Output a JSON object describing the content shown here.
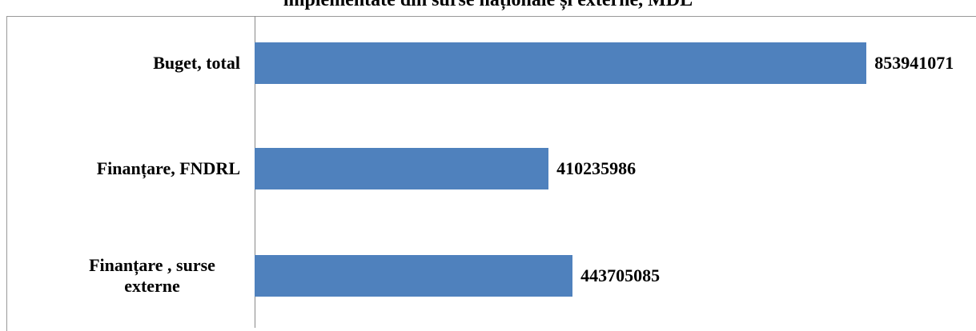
{
  "chart_data": {
    "type": "barh",
    "title": "implementate din surse naționale și externe, MDL",
    "categories": [
      "Buget, total",
      "Finanțare, FNDRL",
      "Finanțare , surse externe"
    ],
    "values": [
      853941071,
      410235986,
      443705085
    ],
    "color": "#4f81bd",
    "xlim": [
      0,
      1000000000
    ]
  }
}
